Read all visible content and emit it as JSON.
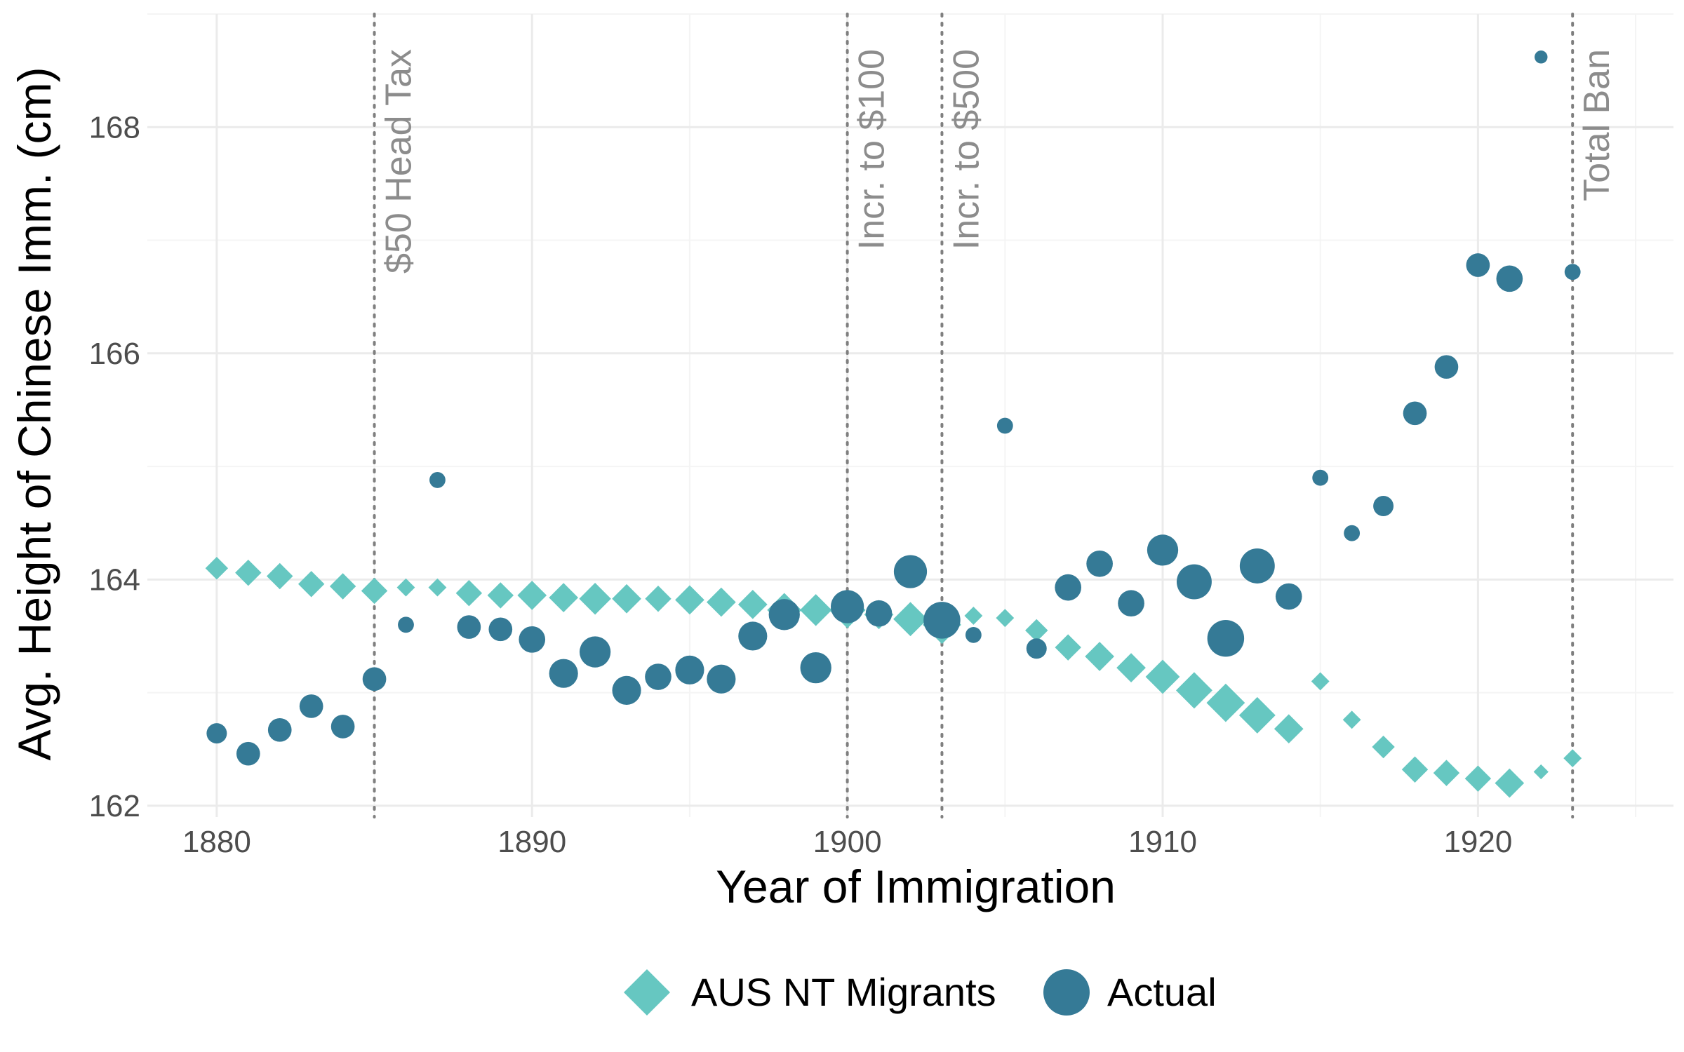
{
  "chart_data": {
    "type": "scatter",
    "title": "",
    "xlabel": "Year of Immigration",
    "ylabel": "Avg. Height of Chinese Imm. (cm)",
    "xlim": [
      1877.8,
      1926.2
    ],
    "ylim": [
      161.9,
      169.0
    ],
    "x_ticks": [
      1880,
      1890,
      1900,
      1910,
      1920
    ],
    "y_ticks": [
      162,
      164,
      166,
      168
    ],
    "grid": true,
    "legend_position": "bottom",
    "colors": {
      "aus": "#66c7c1",
      "actual": "#357a96"
    },
    "policy_lines": [
      {
        "year": 1885,
        "label": "$50 Head Tax"
      },
      {
        "year": 1900,
        "label": "Incr. to $100"
      },
      {
        "year": 1903,
        "label": "Incr. to $500"
      },
      {
        "year": 1923,
        "label": "Total Ban"
      }
    ],
    "series": [
      {
        "name": "AUS NT Migrants",
        "marker": "diamond",
        "points": [
          {
            "x": 1880,
            "y": 164.1,
            "w": 2
          },
          {
            "x": 1881,
            "y": 164.06,
            "w": 3
          },
          {
            "x": 1882,
            "y": 164.03,
            "w": 3
          },
          {
            "x": 1883,
            "y": 163.96,
            "w": 3
          },
          {
            "x": 1884,
            "y": 163.94,
            "w": 3
          },
          {
            "x": 1885,
            "y": 163.9,
            "w": 3
          },
          {
            "x": 1886,
            "y": 163.93,
            "w": 1
          },
          {
            "x": 1887,
            "y": 163.93,
            "w": 1
          },
          {
            "x": 1888,
            "y": 163.88,
            "w": 3
          },
          {
            "x": 1889,
            "y": 163.86,
            "w": 3
          },
          {
            "x": 1890,
            "y": 163.86,
            "w": 4
          },
          {
            "x": 1891,
            "y": 163.84,
            "w": 4
          },
          {
            "x": 1892,
            "y": 163.83,
            "w": 5
          },
          {
            "x": 1893,
            "y": 163.83,
            "w": 4
          },
          {
            "x": 1894,
            "y": 163.83,
            "w": 3
          },
          {
            "x": 1895,
            "y": 163.82,
            "w": 4
          },
          {
            "x": 1896,
            "y": 163.8,
            "w": 4
          },
          {
            "x": 1897,
            "y": 163.78,
            "w": 4
          },
          {
            "x": 1898,
            "y": 163.73,
            "w": 6
          },
          {
            "x": 1899,
            "y": 163.73,
            "w": 5
          },
          {
            "x": 1900,
            "y": 163.73,
            "w": 7
          },
          {
            "x": 1901,
            "y": 163.69,
            "w": 4
          },
          {
            "x": 1902,
            "y": 163.65,
            "w": 6
          },
          {
            "x": 1903,
            "y": 163.6,
            "w": 8
          },
          {
            "x": 1904,
            "y": 163.68,
            "w": 1
          },
          {
            "x": 1905,
            "y": 163.66,
            "w": 1
          },
          {
            "x": 1906,
            "y": 163.55,
            "w": 2
          },
          {
            "x": 1907,
            "y": 163.4,
            "w": 3
          },
          {
            "x": 1908,
            "y": 163.32,
            "w": 4
          },
          {
            "x": 1909,
            "y": 163.22,
            "w": 4
          },
          {
            "x": 1910,
            "y": 163.14,
            "w": 6
          },
          {
            "x": 1911,
            "y": 163.02,
            "w": 7
          },
          {
            "x": 1912,
            "y": 162.91,
            "w": 8
          },
          {
            "x": 1913,
            "y": 162.8,
            "w": 7
          },
          {
            "x": 1914,
            "y": 162.68,
            "w": 4
          },
          {
            "x": 1915,
            "y": 163.1,
            "w": 1
          },
          {
            "x": 1916,
            "y": 162.76,
            "w": 1
          },
          {
            "x": 1917,
            "y": 162.52,
            "w": 2
          },
          {
            "x": 1918,
            "y": 162.32,
            "w": 3
          },
          {
            "x": 1919,
            "y": 162.29,
            "w": 3
          },
          {
            "x": 1920,
            "y": 162.24,
            "w": 3
          },
          {
            "x": 1921,
            "y": 162.2,
            "w": 4
          },
          {
            "x": 1922,
            "y": 162.3,
            "w": 0.5
          },
          {
            "x": 1923,
            "y": 162.42,
            "w": 1
          }
        ]
      },
      {
        "name": "Actual",
        "marker": "circle",
        "points": [
          {
            "x": 1880,
            "y": 162.64,
            "w": 2
          },
          {
            "x": 1881,
            "y": 162.46,
            "w": 3
          },
          {
            "x": 1882,
            "y": 162.67,
            "w": 3
          },
          {
            "x": 1883,
            "y": 162.88,
            "w": 3
          },
          {
            "x": 1884,
            "y": 162.7,
            "w": 3
          },
          {
            "x": 1885,
            "y": 163.12,
            "w": 3
          },
          {
            "x": 1886,
            "y": 163.6,
            "w": 1
          },
          {
            "x": 1887,
            "y": 164.88,
            "w": 1
          },
          {
            "x": 1888,
            "y": 163.58,
            "w": 3
          },
          {
            "x": 1889,
            "y": 163.56,
            "w": 3
          },
          {
            "x": 1890,
            "y": 163.47,
            "w": 4
          },
          {
            "x": 1891,
            "y": 163.17,
            "w": 5
          },
          {
            "x": 1892,
            "y": 163.36,
            "w": 6
          },
          {
            "x": 1893,
            "y": 163.02,
            "w": 5
          },
          {
            "x": 1894,
            "y": 163.14,
            "w": 4
          },
          {
            "x": 1895,
            "y": 163.2,
            "w": 5
          },
          {
            "x": 1896,
            "y": 163.12,
            "w": 5
          },
          {
            "x": 1897,
            "y": 163.5,
            "w": 5
          },
          {
            "x": 1898,
            "y": 163.69,
            "w": 6
          },
          {
            "x": 1899,
            "y": 163.22,
            "w": 6
          },
          {
            "x": 1900,
            "y": 163.76,
            "w": 7
          },
          {
            "x": 1901,
            "y": 163.7,
            "w": 4
          },
          {
            "x": 1902,
            "y": 164.07,
            "w": 7
          },
          {
            "x": 1903,
            "y": 163.64,
            "w": 9
          },
          {
            "x": 1904,
            "y": 163.51,
            "w": 1
          },
          {
            "x": 1905,
            "y": 165.36,
            "w": 1
          },
          {
            "x": 1906,
            "y": 163.39,
            "w": 2
          },
          {
            "x": 1907,
            "y": 163.93,
            "w": 4
          },
          {
            "x": 1908,
            "y": 164.14,
            "w": 4
          },
          {
            "x": 1909,
            "y": 163.79,
            "w": 4
          },
          {
            "x": 1910,
            "y": 164.26,
            "w": 6
          },
          {
            "x": 1911,
            "y": 163.98,
            "w": 8
          },
          {
            "x": 1912,
            "y": 163.48,
            "w": 9
          },
          {
            "x": 1913,
            "y": 164.12,
            "w": 8
          },
          {
            "x": 1914,
            "y": 163.85,
            "w": 4
          },
          {
            "x": 1915,
            "y": 164.9,
            "w": 1
          },
          {
            "x": 1916,
            "y": 164.41,
            "w": 1
          },
          {
            "x": 1917,
            "y": 164.65,
            "w": 2
          },
          {
            "x": 1918,
            "y": 165.47,
            "w": 3
          },
          {
            "x": 1919,
            "y": 165.88,
            "w": 3
          },
          {
            "x": 1920,
            "y": 166.78,
            "w": 3
          },
          {
            "x": 1921,
            "y": 166.66,
            "w": 4
          },
          {
            "x": 1922,
            "y": 168.62,
            "w": 0.5
          },
          {
            "x": 1923,
            "y": 166.72,
            "w": 1
          }
        ]
      }
    ]
  }
}
